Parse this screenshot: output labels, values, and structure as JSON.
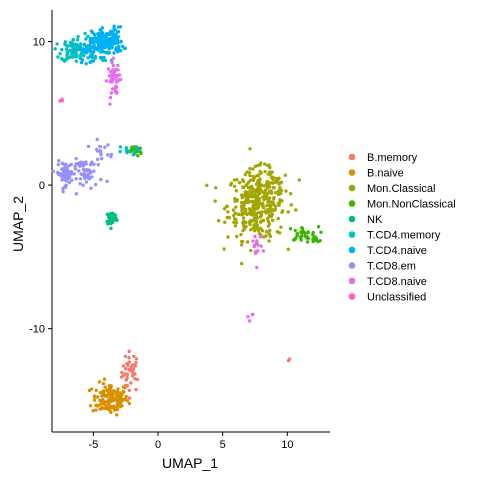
{
  "chart_data": {
    "type": "scatter",
    "title": "",
    "xlabel": "UMAP_1",
    "ylabel": "UMAP_2",
    "xlim": [
      -8.2,
      13.3
    ],
    "ylim": [
      -17.2,
      12.2
    ],
    "xticks": [
      -5,
      0,
      5,
      10
    ],
    "yticks": [
      -10,
      0,
      10
    ],
    "xtick_labels": [
      "-5",
      "0",
      "5",
      "10"
    ],
    "ytick_labels": [
      "-10",
      "0",
      "10"
    ],
    "grid": false,
    "legend_position": "right",
    "series": [
      {
        "name": "B.memory",
        "color": "#F8766D",
        "clusters": [
          {
            "cx": -2.1,
            "cy": -13.0,
            "sx": 0.35,
            "sy": 0.7,
            "n": 40
          },
          {
            "cx": 10.1,
            "cy": -12.2,
            "sx": 0.05,
            "sy": 0.05,
            "n": 2
          }
        ]
      },
      {
        "name": "B.naive",
        "color": "#D89000",
        "clusters": [
          {
            "cx": -3.7,
            "cy": -14.9,
            "sx": 0.7,
            "sy": 0.55,
            "n": 130
          }
        ]
      },
      {
        "name": "Mon.Classical",
        "color": "#A3A500",
        "clusters": [
          {
            "cx": 7.6,
            "cy": -1.4,
            "sx": 1.1,
            "sy": 1.2,
            "n": 320
          },
          {
            "cx": 8.4,
            "cy": -0.2,
            "sx": 0.8,
            "sy": 0.7,
            "n": 60
          }
        ]
      },
      {
        "name": "Mon.NonClassical",
        "color": "#39B600",
        "clusters": [
          {
            "cx": 11.2,
            "cy": -3.4,
            "sx": 0.6,
            "sy": 0.25,
            "n": 30
          },
          {
            "cx": 12.1,
            "cy": -3.9,
            "sx": 0.3,
            "sy": 0.1,
            "n": 8
          },
          {
            "cx": -1.7,
            "cy": 2.4,
            "sx": 0.2,
            "sy": 0.2,
            "n": 30
          }
        ]
      },
      {
        "name": "NK",
        "color": "#00BF7D",
        "clusters": [
          {
            "cx": -3.6,
            "cy": -2.3,
            "sx": 0.2,
            "sy": 0.25,
            "n": 45
          }
        ]
      },
      {
        "name": "T.CD4.memory",
        "color": "#00BFC4",
        "clusters": [
          {
            "cx": -6.5,
            "cy": 9.4,
            "sx": 0.5,
            "sy": 0.4,
            "n": 90
          },
          {
            "cx": -2.5,
            "cy": 2.4,
            "sx": 0.5,
            "sy": 0.15,
            "n": 12
          },
          {
            "cx": -4.8,
            "cy": 9.6,
            "sx": 0.5,
            "sy": 0.5,
            "n": 40
          }
        ]
      },
      {
        "name": "T.CD4.naive",
        "color": "#00B0F6",
        "clusters": [
          {
            "cx": -3.9,
            "cy": 10.0,
            "sx": 0.6,
            "sy": 0.5,
            "n": 140
          },
          {
            "cx": -5.3,
            "cy": 9.3,
            "sx": 0.4,
            "sy": 0.4,
            "n": 30
          }
        ]
      },
      {
        "name": "T.CD8.em",
        "color": "#9590FF",
        "clusters": [
          {
            "cx": -7.2,
            "cy": 0.8,
            "sx": 0.3,
            "sy": 0.4,
            "n": 60
          },
          {
            "cx": -5.5,
            "cy": 0.8,
            "sx": 0.6,
            "sy": 0.5,
            "n": 50
          },
          {
            "cx": -4.5,
            "cy": 2.3,
            "sx": 0.5,
            "sy": 0.4,
            "n": 20
          }
        ]
      },
      {
        "name": "T.CD8.naive",
        "color": "#E76BF3",
        "clusters": [
          {
            "cx": -3.4,
            "cy": 7.4,
            "sx": 0.25,
            "sy": 0.6,
            "n": 45
          },
          {
            "cx": 7.6,
            "cy": -4.4,
            "sx": 0.2,
            "sy": 0.6,
            "n": 15
          },
          {
            "cx": 7.1,
            "cy": -9.1,
            "sx": 0.15,
            "sy": 0.15,
            "n": 4
          }
        ]
      },
      {
        "name": "Unclassified",
        "color": "#FF62BC",
        "clusters": [
          {
            "cx": -7.5,
            "cy": 5.9,
            "sx": 0.06,
            "sy": 0.06,
            "n": 3
          }
        ]
      }
    ]
  }
}
